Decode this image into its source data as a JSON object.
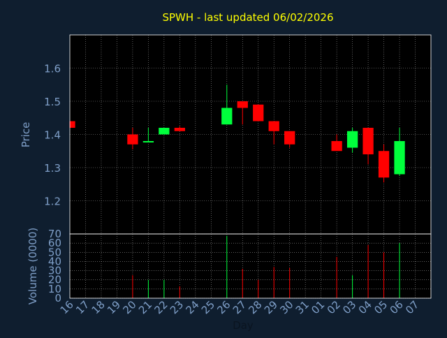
{
  "chart_data": {
    "type": "candlestick",
    "title": "SPWH - last updated 06/02/2026",
    "price_panel": {
      "ylabel": "Price",
      "ylim": [
        1.1,
        1.7
      ],
      "yticks": [
        "1.2",
        "1.3",
        "1.4",
        "1.5",
        "1.6"
      ]
    },
    "volume_panel": {
      "ylabel": "Volume (0000)",
      "ylim": [
        0,
        70
      ],
      "yticks": [
        "0",
        "10",
        "20",
        "30",
        "40",
        "50",
        "60",
        "70"
      ]
    },
    "xlabel": "Day",
    "x_ticks": [
      "16",
      "17",
      "18",
      "19",
      "20",
      "21",
      "22",
      "23",
      "24",
      "25",
      "26",
      "27",
      "28",
      "29",
      "30",
      "31",
      "01",
      "02",
      "03",
      "04",
      "05",
      "06",
      "07"
    ],
    "grid": true,
    "colors": {
      "background": "#0f1e2f",
      "plot_background": "#000000",
      "up": "#00ff3c",
      "down": "#ff0000",
      "title": "#ffff00",
      "axis_text": "#7f9fc8",
      "grid": "#ffffff"
    },
    "candles": [
      {
        "day": "16",
        "open": 1.44,
        "high": 1.44,
        "low": 1.42,
        "close": 1.42,
        "volume": 0
      },
      {
        "day": "20",
        "open": 1.4,
        "high": 1.42,
        "low": 1.355,
        "close": 1.37,
        "volume": 25
      },
      {
        "day": "21",
        "open": 1.38,
        "high": 1.42,
        "low": 1.38,
        "close": 1.38,
        "volume": 20
      },
      {
        "day": "22",
        "open": 1.4,
        "high": 1.42,
        "low": 1.4,
        "close": 1.42,
        "volume": 20
      },
      {
        "day": "23",
        "open": 1.42,
        "high": 1.425,
        "low": 1.41,
        "close": 1.41,
        "volume": 13
      },
      {
        "day": "26",
        "open": 1.43,
        "high": 1.55,
        "low": 1.43,
        "close": 1.48,
        "volume": 68
      },
      {
        "day": "27",
        "open": 1.5,
        "high": 1.5,
        "low": 1.43,
        "close": 1.48,
        "volume": 32
      },
      {
        "day": "28",
        "open": 1.49,
        "high": 1.49,
        "low": 1.44,
        "close": 1.44,
        "volume": 20
      },
      {
        "day": "29",
        "open": 1.44,
        "high": 1.44,
        "low": 1.37,
        "close": 1.41,
        "volume": 34
      },
      {
        "day": "30",
        "open": 1.41,
        "high": 1.41,
        "low": 1.36,
        "close": 1.37,
        "volume": 33
      },
      {
        "day": "02",
        "open": 1.38,
        "high": 1.4,
        "low": 1.35,
        "close": 1.35,
        "volume": 45
      },
      {
        "day": "03",
        "open": 1.36,
        "high": 1.42,
        "low": 1.345,
        "close": 1.41,
        "volume": 25
      },
      {
        "day": "04",
        "open": 1.42,
        "high": 1.42,
        "low": 1.31,
        "close": 1.34,
        "volume": 58
      },
      {
        "day": "05",
        "open": 1.35,
        "high": 1.37,
        "low": 1.255,
        "close": 1.27,
        "volume": 50
      },
      {
        "day": "06",
        "open": 1.28,
        "high": 1.42,
        "low": 1.275,
        "close": 1.38,
        "volume": 60
      }
    ]
  }
}
